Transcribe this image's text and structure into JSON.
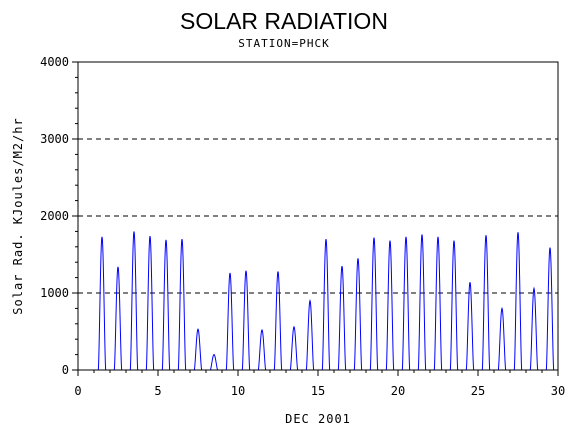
{
  "chart_data": {
    "type": "line",
    "title": "SOLAR RADIATION",
    "subtitle": "STATION=PHCK",
    "xlabel": "DEC 2001",
    "ylabel": "Solar Rad. KJoules/M2/hr",
    "xlim": [
      0,
      30
    ],
    "ylim": [
      0,
      4000
    ],
    "x_ticks": [
      0,
      5,
      10,
      15,
      20,
      25,
      30
    ],
    "x_tick_labels": [
      "0",
      "5",
      "10",
      "15",
      "20",
      "25",
      "30"
    ],
    "y_ticks": [
      0,
      1000,
      2000,
      3000,
      4000
    ],
    "y_tick_labels": [
      "0",
      "1000",
      "2000",
      "3000",
      "4000"
    ],
    "grid": "horizontal dashed at y ticks",
    "series": [
      {
        "color": "#0000ff",
        "daily_peaks": [
          {
            "day": 1,
            "peak": 1730
          },
          {
            "day": 2,
            "peak": 1340
          },
          {
            "day": 3,
            "peak": 1800
          },
          {
            "day": 4,
            "peak": 1740
          },
          {
            "day": 5,
            "peak": 1690
          },
          {
            "day": 6,
            "peak": 1700
          },
          {
            "day": 7,
            "peak": 530
          },
          {
            "day": 8,
            "peak": 200
          },
          {
            "day": 9,
            "peak": 1260
          },
          {
            "day": 10,
            "peak": 1290
          },
          {
            "day": 11,
            "peak": 520
          },
          {
            "day": 12,
            "peak": 1280
          },
          {
            "day": 13,
            "peak": 560
          },
          {
            "day": 14,
            "peak": 900
          },
          {
            "day": 15,
            "peak": 1700
          },
          {
            "day": 16,
            "peak": 1350
          },
          {
            "day": 17,
            "peak": 1450
          },
          {
            "day": 18,
            "peak": 1720
          },
          {
            "day": 19,
            "peak": 1680
          },
          {
            "day": 20,
            "peak": 1730
          },
          {
            "day": 21,
            "peak": 1760
          },
          {
            "day": 22,
            "peak": 1730
          },
          {
            "day": 23,
            "peak": 1680
          },
          {
            "day": 24,
            "peak": 1140
          },
          {
            "day": 25,
            "peak": 1750
          },
          {
            "day": 26,
            "peak": 800
          },
          {
            "day": 27,
            "peak": 1790
          },
          {
            "day": 28,
            "peak": 1060
          },
          {
            "day": 29,
            "peak": 1590
          }
        ]
      }
    ]
  }
}
